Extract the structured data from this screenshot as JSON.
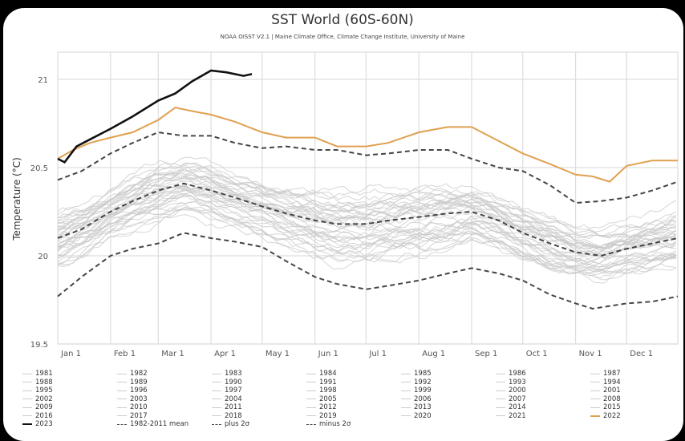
{
  "chart_data": {
    "type": "line",
    "title": "SST World (60S-60N)",
    "subtitle": "NOAA OISST V2.1 | Maine Climate Office, Climate Change Institute, University of Maine",
    "xlabel": "",
    "ylabel": "Temperature (°C)",
    "ylim": [
      19.5,
      21.15
    ],
    "xlim_day_of_year": [
      1,
      365
    ],
    "grid": true,
    "y_ticks": [
      19.5,
      20,
      20.5,
      21
    ],
    "y_tick_labels": [
      "19.5",
      "20",
      "20.5",
      "21"
    ],
    "x_ticks_day": [
      1,
      32,
      60,
      91,
      121,
      152,
      182,
      213,
      244,
      274,
      305,
      335
    ],
    "x_tick_labels": [
      "Jan 1",
      "Feb 1",
      "Mar 1",
      "Apr 1",
      "May 1",
      "Jun 1",
      "Jul 1",
      "Aug 1",
      "Sep 1",
      "Oct 1",
      "Nov 1",
      "Dec 1"
    ],
    "legend_placement": "bottom",
    "colors": {
      "historical": "#c8c8c8",
      "y2022": "#e0a050",
      "y2023": "#111111",
      "reference": "#444444"
    },
    "highlight_series": [
      {
        "name": "2023",
        "style": "solid-bold",
        "x": [
          1,
          5,
          12,
          20,
          32,
          45,
          60,
          70,
          80,
          91,
          100,
          110,
          115
        ],
        "y": [
          20.55,
          20.53,
          20.62,
          20.66,
          20.72,
          20.79,
          20.88,
          20.92,
          20.99,
          21.05,
          21.04,
          21.02,
          21.03
        ]
      },
      {
        "name": "2022",
        "style": "solid-orange",
        "x": [
          1,
          10,
          20,
          32,
          45,
          60,
          70,
          80,
          91,
          105,
          121,
          135,
          152,
          165,
          182,
          195,
          213,
          230,
          244,
          260,
          274,
          290,
          305,
          315,
          325,
          335,
          350,
          365
        ],
        "y": [
          20.55,
          20.6,
          20.64,
          20.67,
          20.7,
          20.77,
          20.84,
          20.82,
          20.8,
          20.76,
          20.7,
          20.67,
          20.67,
          20.62,
          20.62,
          20.64,
          20.7,
          20.73,
          20.73,
          20.65,
          20.58,
          20.52,
          20.46,
          20.45,
          20.42,
          20.51,
          20.54,
          20.54
        ]
      },
      {
        "name": "1982-2011 mean",
        "style": "dashed",
        "x": [
          1,
          15,
          32,
          45,
          60,
          75,
          91,
          105,
          121,
          135,
          152,
          165,
          182,
          195,
          213,
          230,
          244,
          260,
          274,
          290,
          305,
          320,
          335,
          350,
          365
        ],
        "y": [
          20.1,
          20.15,
          20.25,
          20.31,
          20.37,
          20.41,
          20.37,
          20.33,
          20.28,
          20.24,
          20.2,
          20.18,
          20.18,
          20.2,
          20.22,
          20.24,
          20.25,
          20.2,
          20.13,
          20.07,
          20.02,
          20.0,
          20.04,
          20.07,
          20.1
        ]
      },
      {
        "name": "plus 2σ",
        "style": "dashed",
        "x": [
          1,
          15,
          32,
          45,
          60,
          75,
          91,
          105,
          121,
          135,
          152,
          165,
          182,
          195,
          213,
          230,
          244,
          260,
          274,
          290,
          305,
          320,
          335,
          350,
          365
        ],
        "y": [
          20.43,
          20.48,
          20.58,
          20.64,
          20.7,
          20.68,
          20.68,
          20.64,
          20.61,
          20.62,
          20.6,
          20.6,
          20.57,
          20.58,
          20.6,
          20.6,
          20.55,
          20.5,
          20.48,
          20.4,
          20.3,
          20.31,
          20.33,
          20.37,
          20.42
        ]
      },
      {
        "name": "minus 2σ",
        "style": "dashed",
        "x": [
          1,
          15,
          32,
          45,
          60,
          75,
          91,
          105,
          121,
          135,
          152,
          165,
          182,
          195,
          213,
          230,
          244,
          260,
          274,
          290,
          305,
          315,
          335,
          350,
          365
        ],
        "y": [
          19.77,
          19.88,
          20.0,
          20.04,
          20.07,
          20.13,
          20.1,
          20.08,
          20.05,
          19.97,
          19.88,
          19.84,
          19.81,
          19.83,
          19.86,
          19.9,
          19.93,
          19.9,
          19.86,
          19.78,
          19.73,
          19.7,
          19.73,
          19.74,
          19.77
        ]
      }
    ],
    "background_years": [
      "1981",
      "1982",
      "1983",
      "1984",
      "1985",
      "1986",
      "1987",
      "1988",
      "1989",
      "1990",
      "1991",
      "1992",
      "1993",
      "1994",
      "1995",
      "1996",
      "1997",
      "1998",
      "1999",
      "2000",
      "2001",
      "2002",
      "2003",
      "2004",
      "2005",
      "2006",
      "2007",
      "2008",
      "2009",
      "2010",
      "2011",
      "2012",
      "2013",
      "2014",
      "2015",
      "2016",
      "2017",
      "2018",
      "2019",
      "2020",
      "2021"
    ],
    "legend_entries": [
      "1981",
      "1982",
      "1983",
      "1984",
      "1985",
      "1986",
      "1987",
      "1988",
      "1989",
      "1990",
      "1991",
      "1992",
      "1993",
      "1994",
      "1995",
      "1996",
      "1997",
      "1998",
      "1999",
      "2000",
      "2001",
      "2002",
      "2003",
      "2004",
      "2005",
      "2006",
      "2007",
      "2008",
      "2009",
      "2010",
      "2011",
      "2012",
      "2013",
      "2014",
      "2015",
      "2016",
      "2017",
      "2018",
      "2019",
      "2020",
      "2021",
      "2022",
      "2023",
      "1982-2011 mean",
      "plus 2σ",
      "minus 2σ"
    ]
  }
}
